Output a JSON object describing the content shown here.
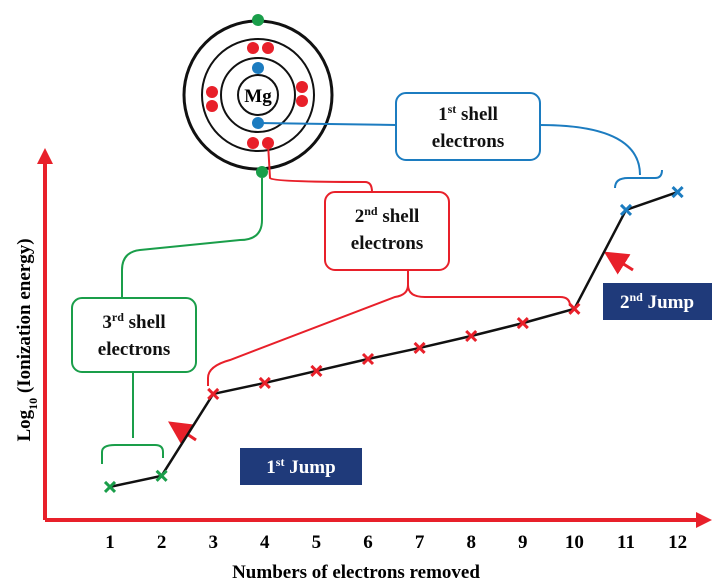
{
  "chart_data": {
    "type": "line",
    "x_label": "Numbers of electrons removed",
    "y_label": {
      "text": "Log",
      "sub": "10",
      "rest": " (Ionization energy)"
    },
    "categories": [
      "1",
      "2",
      "3",
      "4",
      "5",
      "6",
      "7",
      "8",
      "9",
      "10",
      "11",
      "12"
    ],
    "values": [
      7.2,
      9.6,
      27.4,
      29.8,
      32.4,
      35,
      37.4,
      40,
      42.8,
      45.9,
      67.4,
      71.3
    ],
    "marker_colors": [
      "#1a9e4a",
      "#1a9e4a",
      "#e8202a",
      "#e8202a",
      "#e8202a",
      "#e8202a",
      "#e8202a",
      "#e8202a",
      "#e8202a",
      "#e8202a",
      "#1c7cc0",
      "#1c7cc0"
    ],
    "line_color": "#111111",
    "ylim": [
      0,
      100
    ],
    "atom": "Mg",
    "annotations": {
      "shell1": {
        "lead": "1",
        "sup": "st",
        "text": " shell",
        "line2": "electrons"
      },
      "shell2": {
        "lead": "2",
        "sup": "nd",
        "text": " shell",
        "line2": "electrons"
      },
      "shell3": {
        "lead": "3",
        "sup": "rd",
        "text": " shell",
        "line2": "electrons"
      },
      "jump1": {
        "lead": "1",
        "sup": "st",
        "text": " Jump"
      },
      "jump2": {
        "lead": "2",
        "sup": "nd",
        "text": " Jump"
      }
    }
  }
}
